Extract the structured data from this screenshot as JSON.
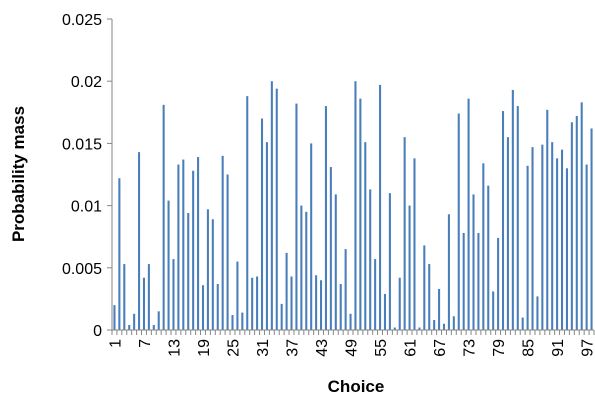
{
  "chart_data": {
    "type": "bar",
    "title": "",
    "xlabel": "Choice",
    "ylabel": "Probability mass",
    "ylim": [
      0,
      0.025
    ],
    "yticks": [
      0,
      0.005,
      0.01,
      0.015,
      0.02,
      0.025
    ],
    "ytick_labels": [
      "0",
      "0.005",
      "0.01",
      "0.015",
      "0.02",
      "0.025"
    ],
    "x_tick_labels": [
      "1",
      "7",
      "13",
      "19",
      "25",
      "31",
      "37",
      "43",
      "49",
      "55",
      "61",
      "67",
      "73",
      "79",
      "85",
      "91",
      "97"
    ],
    "x": [
      1,
      2,
      3,
      4,
      5,
      6,
      7,
      8,
      9,
      10,
      11,
      12,
      13,
      14,
      15,
      16,
      17,
      18,
      19,
      20,
      21,
      22,
      23,
      24,
      25,
      26,
      27,
      28,
      29,
      30,
      31,
      32,
      33,
      34,
      35,
      36,
      37,
      38,
      39,
      40,
      41,
      42,
      43,
      44,
      45,
      46,
      47,
      48,
      49,
      50,
      51,
      52,
      53,
      54,
      55,
      56,
      57,
      58,
      59,
      60,
      61,
      62,
      63,
      64,
      65,
      66,
      67,
      68,
      69,
      70,
      71,
      72,
      73,
      74,
      75,
      76,
      77,
      78,
      79,
      80,
      81,
      82,
      83,
      84,
      85,
      86,
      87,
      88,
      89,
      90,
      91,
      92,
      93,
      94,
      95,
      96,
      97,
      98
    ],
    "values": [
      0.002,
      0.0122,
      0.0053,
      0.0004,
      0.0013,
      0.0143,
      0.0042,
      0.0053,
      0.0004,
      0.0015,
      0.0181,
      0.0104,
      0.0057,
      0.0133,
      0.0137,
      0.0094,
      0.0128,
      0.0139,
      0.0036,
      0.0097,
      0.0089,
      0.0037,
      0.014,
      0.0125,
      0.0012,
      0.0055,
      0.0014,
      0.0188,
      0.0042,
      0.0043,
      0.017,
      0.0151,
      0.02,
      0.0194,
      0.0021,
      0.0062,
      0.0043,
      0.0182,
      0.01,
      0.0095,
      0.015,
      0.0044,
      0.004,
      0.018,
      0.0131,
      0.0109,
      0.0037,
      0.0065,
      0.0013,
      0.02,
      0.0186,
      0.0151,
      0.0113,
      0.0057,
      0.0197,
      0.0029,
      0.011,
      0.0002,
      0.0042,
      0.0155,
      0.01,
      0.0138,
      0.0002,
      0.0068,
      0.0053,
      0.0008,
      0.0033,
      0.0005,
      0.0093,
      0.0011,
      0.0174,
      0.0078,
      0.0186,
      0.0109,
      0.0078,
      0.0134,
      0.0116,
      0.0031,
      0.0074,
      0.0176,
      0.0155,
      0.0193,
      0.018,
      0.001,
      0.0132,
      0.0147,
      0.0027,
      0.0149,
      0.0177,
      0.0151,
      0.0138,
      0.0145,
      0.013,
      0.0167,
      0.0172,
      0.0183,
      0.0133,
      0.0162
    ],
    "bar_color": "#4A7EBB",
    "grid": false,
    "legend": "none"
  }
}
